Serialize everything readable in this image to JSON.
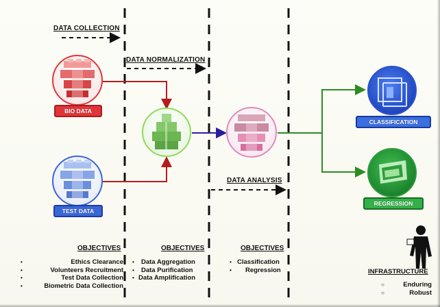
{
  "stages": {
    "collection": "DATA COLLECTION",
    "normalization": "DATA NORMALIZATION",
    "analysis": "DATA ANALYSIS"
  },
  "nodes": {
    "bio": {
      "label": "BIO DATA",
      "color": "#e0353a"
    },
    "test": {
      "label": "TEST DATA",
      "color": "#3a66d8"
    },
    "normalizer": {
      "color": "#6cc24a"
    },
    "analyzer": {
      "color": "#d97ab0"
    },
    "classification": {
      "label": "CLASSIFICATION",
      "color": "#1f4fcf"
    },
    "regression": {
      "label": "REGRESSION",
      "color": "#2c9e3b"
    }
  },
  "objectives": {
    "collection": {
      "title": "OBJECTIVES",
      "items": [
        "Ethics Clearance",
        "Volunteers Recruitment",
        "Test Data Collection",
        "Biometric Data Collection"
      ]
    },
    "normalization": {
      "title": "OBJECTIVES",
      "items": [
        "Data Aggregation",
        "Data Purification",
        "Data Amplification"
      ]
    },
    "analysis": {
      "title": "OBJECTIVES",
      "items": [
        "Classification",
        "Regression"
      ]
    }
  },
  "infrastructure": {
    "title": "INFRASTRUCTURE",
    "items": [
      "Enduring",
      "Robust"
    ]
  },
  "icons": {
    "stack": "stacked-database-icon",
    "person": "presenter-silhouette-icon"
  }
}
